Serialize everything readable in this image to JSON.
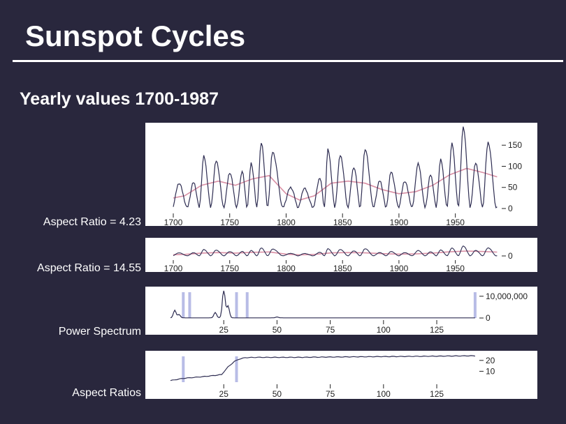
{
  "slide": {
    "title": "Sunspot Cycles",
    "subtitle": "Yearly values 1700-1987"
  },
  "labels": {
    "panel1": "Aspect Ratio = 4.23",
    "panel2": "Aspect Ratio = 14.55",
    "panel3": "Power Spectrum",
    "panel4": "Aspect Ratios"
  },
  "colors": {
    "background": "#29273d",
    "series_line": "#2e2d52",
    "smooth_line": "#d98fa4",
    "highlight": "#b8bce6"
  },
  "chart_data": [
    {
      "type": "line",
      "name": "panel1",
      "x_ticks": [
        1700,
        1750,
        1800,
        1850,
        1900,
        1950
      ],
      "y_ticks": [
        0,
        50,
        100,
        150
      ],
      "xlim": [
        1700,
        1988
      ],
      "ylim": [
        0,
        190
      ],
      "cycle_peaks": [
        [
          1705,
          58
        ],
        [
          1718,
          60
        ],
        [
          1727,
          122
        ],
        [
          1738,
          111
        ],
        [
          1750,
          83
        ],
        [
          1761,
          86
        ],
        [
          1769,
          106
        ],
        [
          1778,
          154
        ],
        [
          1788,
          132
        ],
        [
          1804,
          48
        ],
        [
          1816,
          46
        ],
        [
          1830,
          71
        ],
        [
          1837,
          138
        ],
        [
          1848,
          124
        ],
        [
          1860,
          96
        ],
        [
          1870,
          139
        ],
        [
          1883,
          64
        ],
        [
          1893,
          85
        ],
        [
          1905,
          63
        ],
        [
          1917,
          104
        ],
        [
          1928,
          78
        ],
        [
          1937,
          114
        ],
        [
          1947,
          152
        ],
        [
          1957,
          190
        ],
        [
          1968,
          106
        ],
        [
          1979,
          155
        ]
      ],
      "smooth_series": [
        [
          1700,
          25
        ],
        [
          1710,
          30
        ],
        [
          1725,
          55
        ],
        [
          1740,
          65
        ],
        [
          1755,
          55
        ],
        [
          1770,
          70
        ],
        [
          1785,
          78
        ],
        [
          1800,
          35
        ],
        [
          1812,
          20
        ],
        [
          1825,
          30
        ],
        [
          1840,
          60
        ],
        [
          1855,
          65
        ],
        [
          1870,
          60
        ],
        [
          1885,
          45
        ],
        [
          1900,
          35
        ],
        [
          1915,
          40
        ],
        [
          1930,
          55
        ],
        [
          1945,
          80
        ],
        [
          1960,
          95
        ],
        [
          1975,
          85
        ],
        [
          1987,
          75
        ]
      ]
    },
    {
      "type": "line",
      "name": "panel2",
      "x_ticks": [
        1700,
        1750,
        1800,
        1850,
        1900,
        1950
      ],
      "y_ticks": [
        0
      ],
      "xlim": [
        1700,
        1988
      ]
    },
    {
      "type": "line",
      "name": "panel3",
      "x_ticks": [
        25,
        50,
        75,
        100,
        125
      ],
      "y_tick_labels": [
        "10,000,000",
        "0"
      ],
      "xlim": [
        0,
        145
      ],
      "ylim": [
        0,
        12500000
      ],
      "highlight_x": [
        6,
        9,
        31,
        36,
        143
      ],
      "peaks": [
        [
          2,
          3500000
        ],
        [
          4,
          1500000
        ],
        [
          21,
          2500000
        ],
        [
          25,
          13500000
        ],
        [
          27,
          5500000
        ],
        [
          50,
          400000
        ]
      ]
    },
    {
      "type": "line",
      "name": "panel4",
      "x_ticks": [
        25,
        50,
        75,
        100,
        125
      ],
      "y_ticks": [
        10,
        20
      ],
      "xlim": [
        0,
        145
      ],
      "ylim": [
        0,
        25
      ],
      "highlight_x": [
        6,
        31
      ],
      "points": [
        [
          0,
          1.5
        ],
        [
          3,
          2.5
        ],
        [
          6,
          3.5
        ],
        [
          10,
          4.2
        ],
        [
          15,
          5
        ],
        [
          20,
          6
        ],
        [
          24,
          7
        ],
        [
          27,
          14
        ],
        [
          30,
          19
        ],
        [
          32,
          21
        ],
        [
          35,
          22.5
        ],
        [
          40,
          22.8
        ],
        [
          60,
          22.8
        ],
        [
          80,
          23.2
        ],
        [
          100,
          23.5
        ],
        [
          120,
          23.8
        ],
        [
          140,
          24.2
        ]
      ]
    }
  ]
}
